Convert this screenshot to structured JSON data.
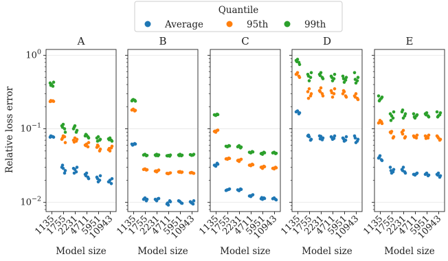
{
  "chart_data": {
    "type": "scatter",
    "ylabel": "Relative loss error",
    "xlabel": "Model size",
    "yscale": "log",
    "ylim": [
      0.0075,
      1.2
    ],
    "yticks": [
      {
        "value": 1,
        "label": "10",
        "exp": "0"
      },
      {
        "value": 0.1,
        "label": "10",
        "exp": "−1"
      },
      {
        "value": 0.01,
        "label": "10",
        "exp": "−2"
      }
    ],
    "grid": "horizontal at major ticks",
    "categories": [
      "1135",
      "1755",
      "2231",
      "4711",
      "5951",
      "10943"
    ],
    "legend": {
      "title": "Quantile",
      "placement": "top-center",
      "entries": [
        {
          "name": "Average",
          "color": "#1f77b4"
        },
        {
          "name": "95th",
          "color": "#ff7f0e"
        },
        {
          "name": "99th",
          "color": "#2ca02c"
        }
      ]
    },
    "panels": [
      {
        "title": "A",
        "series": [
          {
            "name": "Average",
            "values": [
              [
                0.077,
                0.078,
                0.079,
                0.077,
                0.08
              ],
              [
                0.03,
                0.025,
                0.029,
                0.027,
                0.032
              ],
              [
                0.029,
                0.026,
                0.028,
                0.03,
                0.025
              ],
              [
                0.024,
                0.022,
                0.025,
                0.021,
                0.023
              ],
              [
                0.022,
                0.02,
                0.019,
                0.023,
                0.021
              ],
              [
                0.019,
                0.018,
                0.02,
                0.021,
                0.019
              ]
            ]
          },
          {
            "name": "95th",
            "values": [
              [
                0.235,
                0.24,
                0.238,
                0.236,
                0.242
              ],
              [
                0.072,
                0.078,
                0.08,
                0.065,
                0.075
              ],
              [
                0.07,
                0.068,
                0.075,
                0.072,
                0.066
              ],
              [
                0.06,
                0.057,
                0.062,
                0.065,
                0.059
              ],
              [
                0.056,
                0.05,
                0.058,
                0.053,
                0.06
              ],
              [
                0.052,
                0.055,
                0.05,
                0.058,
                0.054
              ]
            ]
          },
          {
            "name": "99th",
            "values": [
              [
                0.42,
                0.38,
                0.4,
                0.43,
                0.39
              ],
              [
                0.11,
                0.1,
                0.115,
                0.09,
                0.105
              ],
              [
                0.1,
                0.09,
                0.11,
                0.095,
                0.105
              ],
              [
                0.08,
                0.078,
                0.082,
                0.075,
                0.084
              ],
              [
                0.075,
                0.07,
                0.078,
                0.072,
                0.068
              ],
              [
                0.073,
                0.07,
                0.075,
                0.068,
                0.071
              ]
            ]
          }
        ]
      },
      {
        "title": "B",
        "series": [
          {
            "name": "Average",
            "values": [
              [
                0.062,
                0.063,
                0.061,
                0.062,
                0.06
              ],
              [
                0.011,
                0.0105,
                0.0115,
                0.011,
                0.0112
              ],
              [
                0.011,
                0.0112,
                0.0105,
                0.0113,
                0.0108
              ],
              [
                0.0095,
                0.0105,
                0.0092,
                0.0102,
                0.0098
              ],
              [
                0.0105,
                0.0098,
                0.0102,
                0.0097,
                0.0104
              ],
              [
                0.0102,
                0.0095,
                0.0098,
                0.0105,
                0.01
              ]
            ]
          },
          {
            "name": "95th",
            "values": [
              [
                0.18,
                0.175,
                0.185,
                0.178,
                0.182
              ],
              [
                0.028,
                0.0275,
                0.0285,
                0.0278,
                0.0282
              ],
              [
                0.0265,
                0.027,
                0.026,
                0.0275,
                0.0268
              ],
              [
                0.0248,
                0.025,
                0.0245,
                0.0252,
                0.0247
              ],
              [
                0.026,
                0.0255,
                0.0262,
                0.0258,
                0.0257
              ],
              [
                0.0252,
                0.025,
                0.0255,
                0.0248,
                0.0253
              ]
            ]
          },
          {
            "name": "99th",
            "values": [
              [
                0.24,
                0.245,
                0.25,
                0.238,
                0.247
              ],
              [
                0.044,
                0.043,
                0.045,
                0.0435,
                0.0445
              ],
              [
                0.044,
                0.043,
                0.045,
                0.0442,
                0.0432
              ],
              [
                0.043,
                0.0425,
                0.0435,
                0.044,
                0.0428
              ],
              [
                0.044,
                0.043,
                0.045,
                0.0438,
                0.0432
              ],
              [
                0.0445,
                0.044,
                0.0435,
                0.045,
                0.0442
              ]
            ]
          }
        ]
      },
      {
        "title": "C",
        "series": [
          {
            "name": "Average",
            "values": [
              [
                0.032,
                0.034,
                0.031,
                0.033,
                0.032
              ],
              [
                0.0145,
                0.015,
                0.0148,
                0.0152,
                0.0147
              ],
              [
                0.0148,
                0.0152,
                0.0144,
                0.015,
                0.0146
              ],
              [
                0.0122,
                0.0125,
                0.012,
                0.0127,
                0.0123
              ],
              [
                0.0112,
                0.0115,
                0.011,
                0.0113,
                0.0116
              ],
              [
                0.0112,
                0.011,
                0.0115,
                0.0108,
                0.0113
              ]
            ]
          },
          {
            "name": "95th",
            "values": [
              [
                0.092,
                0.095,
                0.09,
                0.096,
                0.093
              ],
              [
                0.039,
                0.04,
                0.0385,
                0.0395,
                0.0392
              ],
              [
                0.037,
                0.038,
                0.036,
                0.0385,
                0.0375
              ],
              [
                0.032,
                0.033,
                0.0315,
                0.0325,
                0.0322
              ],
              [
                0.03,
                0.031,
                0.029,
                0.0305,
                0.0302
              ],
              [
                0.029,
                0.03,
                0.0285,
                0.0295,
                0.0292
              ]
            ]
          },
          {
            "name": "99th",
            "values": [
              [
                0.155,
                0.158,
                0.152,
                0.156,
                0.154
              ],
              [
                0.058,
                0.059,
                0.057,
                0.0585,
                0.0575
              ],
              [
                0.057,
                0.055,
                0.059,
                0.0565,
                0.058
              ],
              [
                0.048,
                0.049,
                0.047,
                0.0485,
                0.0475
              ],
              [
                0.046,
                0.048,
                0.045,
                0.0472,
                0.0465
              ],
              [
                0.047,
                0.046,
                0.048,
                0.0465,
                0.0475
              ]
            ]
          }
        ]
      },
      {
        "title": "D",
        "series": [
          {
            "name": "Average",
            "values": [
              [
                0.17,
                0.16,
                0.175,
                0.165,
                0.172
              ],
              [
                0.08,
                0.07,
                0.078,
                0.072,
                0.082
              ],
              [
                0.08,
                0.071,
                0.079,
                0.075,
                0.073
              ],
              [
                0.078,
                0.074,
                0.072,
                0.08,
                0.076
              ],
              [
                0.075,
                0.07,
                0.068,
                0.078,
                0.073
              ],
              [
                0.08,
                0.068,
                0.065,
                0.072,
                0.075
              ]
            ]
          },
          {
            "name": "95th",
            "values": [
              [
                0.55,
                0.52,
                0.58,
                0.5,
                0.56
              ],
              [
                0.32,
                0.28,
                0.35,
                0.3,
                0.26
              ],
              [
                0.33,
                0.3,
                0.36,
                0.28,
                0.32
              ],
              [
                0.33,
                0.3,
                0.27,
                0.35,
                0.31
              ],
              [
                0.3,
                0.28,
                0.32,
                0.27,
                0.33
              ],
              [
                0.28,
                0.26,
                0.3,
                0.25,
                0.27
              ]
            ]
          },
          {
            "name": "99th",
            "values": [
              [
                0.85,
                0.8,
                0.88,
                0.75,
                0.82
              ],
              [
                0.55,
                0.5,
                0.45,
                0.58,
                0.52
              ],
              [
                0.55,
                0.5,
                0.58,
                0.48,
                0.53
              ],
              [
                0.52,
                0.48,
                0.45,
                0.55,
                0.5
              ],
              [
                0.52,
                0.46,
                0.43,
                0.5,
                0.48
              ],
              [
                0.58,
                0.45,
                0.42,
                0.5,
                0.47
              ]
            ]
          }
        ]
      },
      {
        "title": "E",
        "series": [
          {
            "name": "Average",
            "values": [
              [
                0.04,
                0.038,
                0.043,
                0.037,
                0.041
              ],
              [
                0.03,
                0.026,
                0.025,
                0.028,
                0.027
              ],
              [
                0.028,
                0.026,
                0.03,
                0.025,
                0.027
              ],
              [
                0.024,
                0.0245,
                0.0235,
                0.025,
                0.024
              ],
              [
                0.024,
                0.023,
                0.025,
                0.0235,
                0.0245
              ],
              [
                0.024,
                0.022,
                0.025,
                0.023,
                0.0235
              ]
            ]
          },
          {
            "name": "95th",
            "values": [
              [
                0.12,
                0.125,
                0.13,
                0.118,
                0.122
              ],
              [
                0.09,
                0.075,
                0.092,
                0.078,
                0.088
              ],
              [
                0.09,
                0.075,
                0.095,
                0.078,
                0.085
              ],
              [
                0.08,
                0.075,
                0.078,
                0.082,
                0.077
              ],
              [
                0.08,
                0.075,
                0.078,
                0.082,
                0.074
              ],
              [
                0.08,
                0.07,
                0.075,
                0.072,
                0.078
              ]
            ]
          },
          {
            "name": "99th",
            "values": [
              [
                0.28,
                0.26,
                0.25,
                0.27,
                0.24
              ],
              [
                0.16,
                0.14,
                0.15,
                0.17,
                0.13
              ],
              [
                0.17,
                0.15,
                0.14,
                0.16,
                0.18
              ],
              [
                0.16,
                0.15,
                0.14,
                0.155,
                0.145
              ],
              [
                0.16,
                0.15,
                0.165,
                0.145,
                0.155
              ],
              [
                0.17,
                0.155,
                0.15,
                0.165,
                0.145
              ]
            ]
          }
        ]
      }
    ]
  }
}
